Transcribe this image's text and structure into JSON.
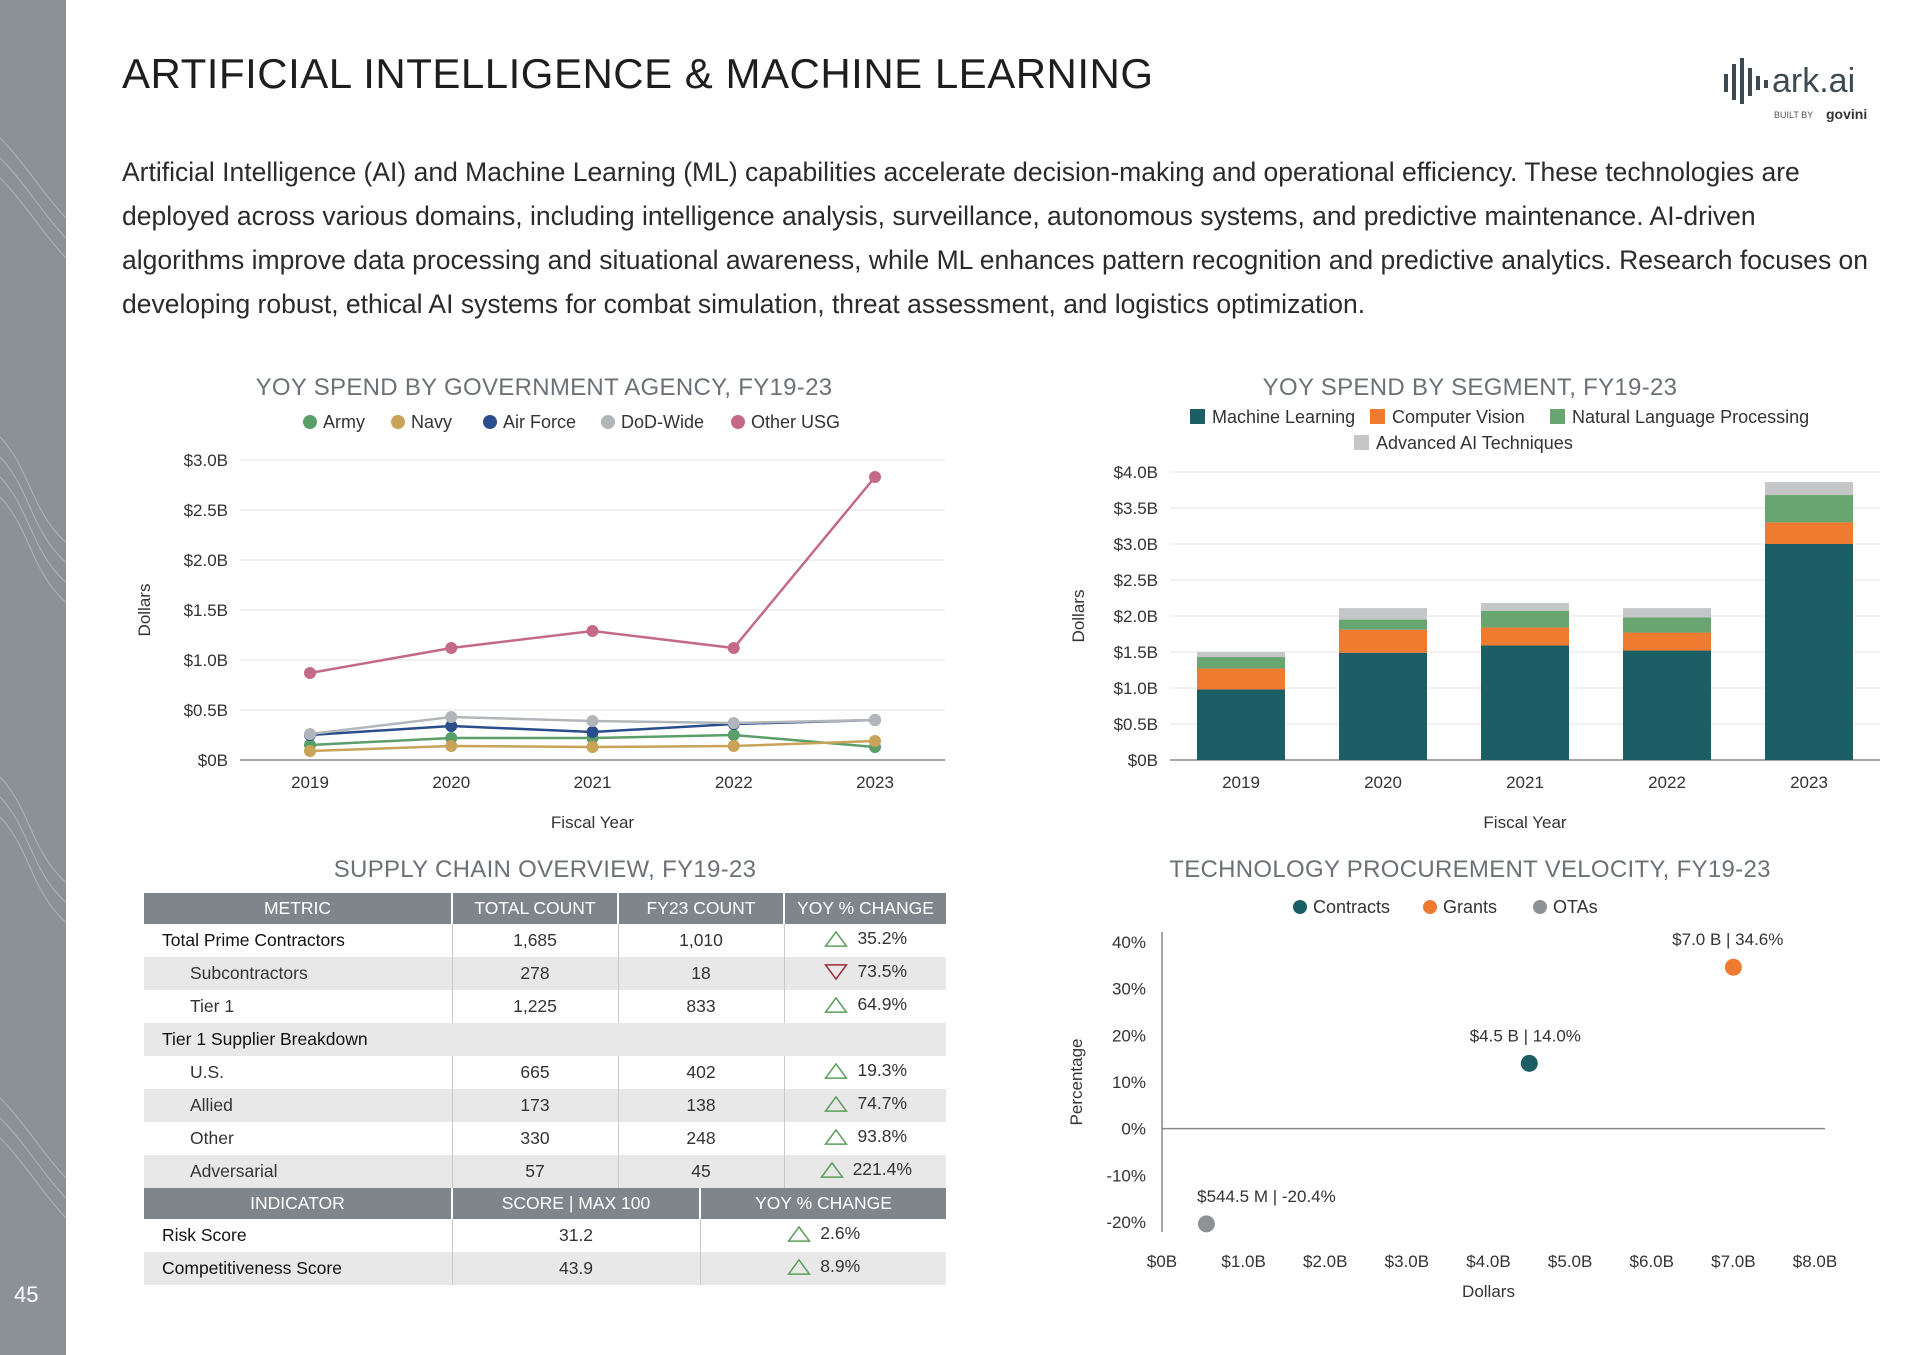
{
  "page": {
    "number": "45",
    "title": "ARTIFICIAL INTELLIGENCE & MACHINE LEARNING",
    "intro": "Artificial Intelligence (AI) and Machine Learning (ML) capabilities accelerate decision-making and operational efficiency. These technologies are deployed across various domains, including intelligence analysis, surveillance, autonomous systems, and predictive maintenance. AI-driven algorithms improve data processing and situational awareness, while ML enhances pattern recognition and predictive analytics. Research focuses on developing robust, ethical AI systems for combat simulation, threat assessment, and logistics optimization."
  },
  "logo": {
    "word": "ark.ai",
    "built_by": "BUILT BY",
    "brand": "govini"
  },
  "colors": {
    "army": "#5a9e6a",
    "navy": "#c9a358",
    "air_force": "#2a4e8c",
    "dod_wide": "#b2b6ba",
    "other_usg": "#c4698a",
    "ml": "#1b5e66",
    "cv": "#ee7b30",
    "nlp": "#69a571",
    "adv": "#c4c6c8",
    "contracts": "#1b5e66",
    "grants": "#ee7b30",
    "otas": "#8d9296",
    "up": "#5c9e5a",
    "down": "#9e2b3a"
  },
  "chart_data": [
    {
      "type": "line",
      "title": "YOY SPEND BY GOVERNMENT AGENCY, FY19-23",
      "xlabel": "Fiscal Year",
      "ylabel": "Dollars",
      "x": [
        "2019",
        "2020",
        "2021",
        "2022",
        "2023"
      ],
      "ylim": [
        0,
        3.0
      ],
      "yticks": [
        "$0B",
        "$0.5B",
        "$1.0B",
        "$1.5B",
        "$2.0B",
        "$2.5B",
        "$3.0B"
      ],
      "legend_position": "top",
      "series": [
        {
          "name": "Army",
          "values": [
            0.15,
            0.22,
            0.22,
            0.25,
            0.13
          ]
        },
        {
          "name": "Navy",
          "values": [
            0.09,
            0.14,
            0.13,
            0.14,
            0.19
          ]
        },
        {
          "name": "Air Force",
          "values": [
            0.25,
            0.34,
            0.28,
            0.36,
            0.4
          ]
        },
        {
          "name": "DoD-Wide",
          "values": [
            0.26,
            0.43,
            0.39,
            0.37,
            0.4
          ]
        },
        {
          "name": "Other USG",
          "values": [
            0.87,
            1.12,
            1.29,
            1.12,
            2.83
          ]
        }
      ]
    },
    {
      "type": "bar",
      "stacked": true,
      "title": "YOY SPEND BY SEGMENT, FY19-23",
      "xlabel": "Fiscal Year",
      "ylabel": "Dollars",
      "categories": [
        "2019",
        "2020",
        "2021",
        "2022",
        "2023"
      ],
      "ylim": [
        0,
        4.0
      ],
      "yticks": [
        "$0B",
        "$0.5B",
        "$1.0B",
        "$1.5B",
        "$2.0B",
        "$2.5B",
        "$3.0B",
        "$3.5B",
        "$4.0B"
      ],
      "legend_position": "top",
      "series": [
        {
          "name": "Machine Learning",
          "values": [
            0.98,
            1.49,
            1.59,
            1.52,
            3.0
          ]
        },
        {
          "name": "Computer Vision",
          "values": [
            0.29,
            0.32,
            0.25,
            0.25,
            0.3
          ]
        },
        {
          "name": "Natural Language Processing",
          "values": [
            0.16,
            0.14,
            0.23,
            0.21,
            0.38
          ]
        },
        {
          "name": "Advanced AI Techniques",
          "values": [
            0.07,
            0.16,
            0.11,
            0.13,
            0.18
          ]
        }
      ]
    },
    {
      "type": "scatter",
      "title": "TECHNOLOGY PROCUREMENT VELOCITY, FY19-23",
      "xlabel": "Dollars",
      "ylabel": "Percentage",
      "xlim": [
        0,
        8.0
      ],
      "ylim": [
        -20,
        40
      ],
      "xticks": [
        "$0B",
        "$1.0B",
        "$2.0B",
        "$3.0B",
        "$4.0B",
        "$5.0B",
        "$6.0B",
        "$7.0B",
        "$8.0B"
      ],
      "yticks": [
        "-20%",
        "-10%",
        "0%",
        "10%",
        "20%",
        "30%",
        "40%"
      ],
      "legend_position": "top",
      "points": [
        {
          "name": "Contracts",
          "x": 4.5,
          "y": 14.0,
          "label": "$4.5 B | 14.0%"
        },
        {
          "name": "Grants",
          "x": 7.0,
          "y": 34.6,
          "label": "$7.0 B | 34.6%"
        },
        {
          "name": "OTAs",
          "x": 0.5445,
          "y": -20.4,
          "label": "$544.5 M | -20.4%"
        }
      ]
    },
    {
      "type": "table",
      "title": "SUPPLY CHAIN OVERVIEW, FY19-23",
      "headers": [
        "METRIC",
        "TOTAL COUNT",
        "FY23 COUNT",
        "YOY % CHANGE"
      ],
      "rows": [
        {
          "metric": "Total Prime Contractors",
          "total": "1,685",
          "fy23": "1,010",
          "change": "35.2%",
          "dir": "up",
          "level": 0
        },
        {
          "metric": "Subcontractors",
          "total": "278",
          "fy23": "18",
          "change": "73.5%",
          "dir": "down",
          "level": 1
        },
        {
          "metric": "Tier 1",
          "total": "1,225",
          "fy23": "833",
          "change": "64.9%",
          "dir": "up",
          "level": 1
        }
      ],
      "section": "Tier 1 Supplier Breakdown",
      "breakdown": [
        {
          "metric": "U.S.",
          "total": "665",
          "fy23": "402",
          "change": "19.3%",
          "dir": "up"
        },
        {
          "metric": "Allied",
          "total": "173",
          "fy23": "138",
          "change": "74.7%",
          "dir": "up"
        },
        {
          "metric": "Other",
          "total": "330",
          "fy23": "248",
          "change": "93.8%",
          "dir": "up"
        },
        {
          "metric": "Adversarial",
          "total": "57",
          "fy23": "45",
          "change": "221.4%",
          "dir": "up"
        }
      ],
      "indicator_headers": [
        "INDICATOR",
        "SCORE | MAX 100",
        "YOY % CHANGE"
      ],
      "indicators": [
        {
          "name": "Risk Score",
          "score": "31.2",
          "change": "2.6%",
          "dir": "up"
        },
        {
          "name": "Competitiveness Score",
          "score": "43.9",
          "change": "8.9%",
          "dir": "up"
        }
      ]
    }
  ]
}
